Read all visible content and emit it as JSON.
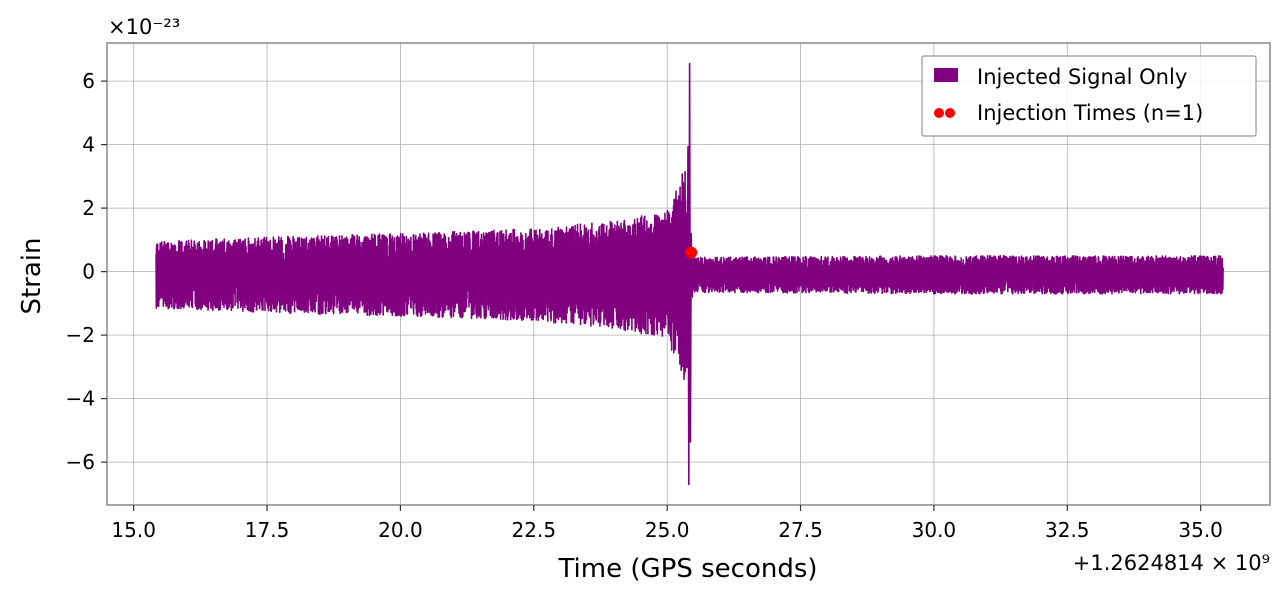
{
  "chart_data": {
    "type": "line",
    "xlabel": "Time (GPS seconds)",
    "ylabel": "Strain",
    "x_offset_label": "+1.2624814 × 10⁹",
    "y_scale_label": "×10⁻²³",
    "xlim": [
      14.5,
      36.3
    ],
    "ylim": [
      -7.35,
      7.2
    ],
    "x_ticks": [
      15.0,
      17.5,
      20.0,
      22.5,
      25.0,
      27.5,
      30.0,
      32.5,
      35.0
    ],
    "x_tick_labels": [
      "15.0",
      "17.5",
      "20.0",
      "22.5",
      "25.0",
      "27.5",
      "30.0",
      "32.5",
      "35.0"
    ],
    "y_ticks": [
      -6,
      -4,
      -2,
      0,
      2,
      4,
      6
    ],
    "y_tick_labels": [
      "−6",
      "−4",
      "−2",
      "0",
      "2",
      "4",
      "6"
    ],
    "grid": true,
    "legend_position": "top-right",
    "series": [
      {
        "name": "Injected Signal Only",
        "kind": "line",
        "color": "#800080",
        "x_start": 15.42,
        "x_end": 35.42,
        "merger_time": 25.42,
        "peak_strain": [
          -6.7,
          6.55
        ],
        "pre_merger_envelope": [
          {
            "x": 15.42,
            "y": 1.05
          },
          {
            "x": 17.5,
            "y": 1.2
          },
          {
            "x": 20.0,
            "y": 1.3
          },
          {
            "x": 22.5,
            "y": 1.45
          },
          {
            "x": 24.0,
            "y": 1.7
          },
          {
            "x": 25.0,
            "y": 2.0
          },
          {
            "x": 25.3,
            "y": 3.3
          }
        ],
        "post_merger_envelope": [
          {
            "x": 25.5,
            "y": 0.55
          },
          {
            "x": 30.0,
            "y": 0.6
          },
          {
            "x": 35.42,
            "y": 0.6
          }
        ]
      },
      {
        "name": "Injection Times (n=1)",
        "kind": "scatter",
        "color": "#ff0000",
        "points": [
          {
            "x": 25.45,
            "y": 0.6
          }
        ]
      }
    ]
  }
}
